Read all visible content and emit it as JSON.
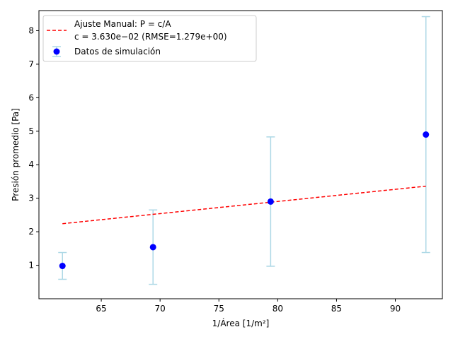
{
  "chart_data": {
    "type": "scatter",
    "xlabel": "1/Área [1/m²]",
    "ylabel": "Presión promedio [Pa]",
    "xlim": [
      59.7,
      94.0
    ],
    "ylim": [
      0.0,
      8.6
    ],
    "xticks": [
      65,
      70,
      75,
      80,
      85,
      90
    ],
    "yticks": [
      1,
      2,
      3,
      4,
      5,
      6,
      7,
      8
    ],
    "grid": false,
    "legend_position": "top-left",
    "series": [
      {
        "name": "Datos de simulación",
        "kind": "scatter-errorbar",
        "color": "#0000ff",
        "error_color": "#add8e6",
        "points": [
          {
            "x": 61.7,
            "y": 0.98,
            "y_low": 0.58,
            "y_high": 1.38
          },
          {
            "x": 69.4,
            "y": 1.54,
            "y_low": 0.43,
            "y_high": 2.65
          },
          {
            "x": 79.4,
            "y": 2.9,
            "y_low": 0.97,
            "y_high": 4.83
          },
          {
            "x": 92.6,
            "y": 4.9,
            "y_low": 1.38,
            "y_high": 8.42
          }
        ]
      },
      {
        "name": "Ajuste Manual: P = c/A",
        "name_line2": "c = 3.630e−02 (RMSE=1.279e+00)",
        "kind": "line",
        "color": "#ff0000",
        "dash": "dashed",
        "x": [
          61.7,
          92.6
        ],
        "y": [
          2.24,
          3.36
        ]
      }
    ]
  }
}
